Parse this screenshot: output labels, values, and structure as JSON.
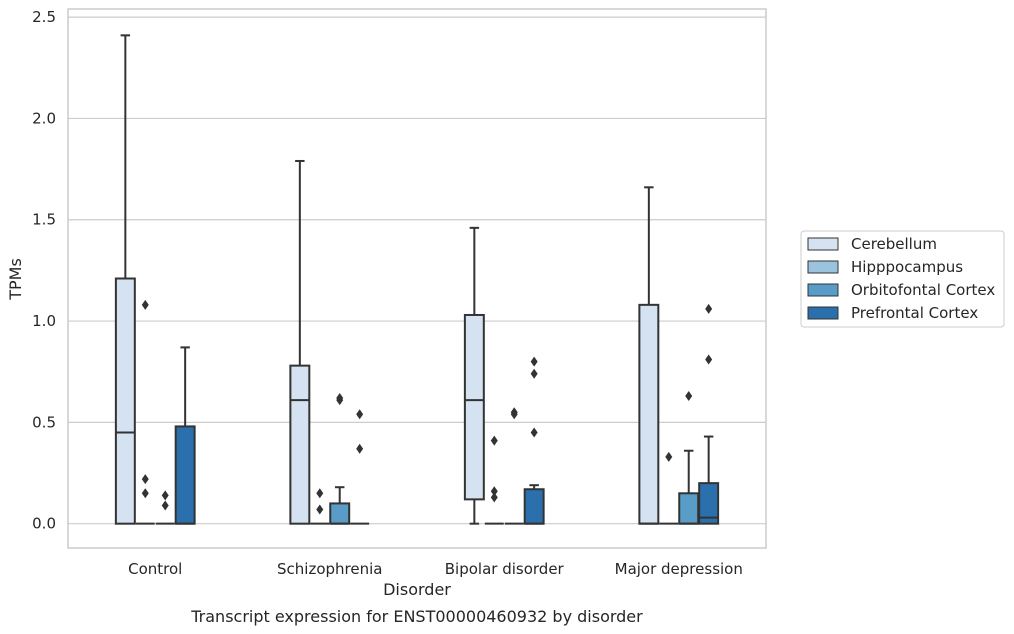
{
  "chart_data": {
    "type": "box",
    "caption": "Transcript expression for ENST00000460932 by disorder",
    "xlabel": "Disorder",
    "ylabel": "TPMs",
    "ylim": [
      -0.12,
      2.54
    ],
    "yticks": [
      "0.0",
      "0.5",
      "1.0",
      "1.5",
      "2.0",
      "2.5"
    ],
    "grid": "horizontal",
    "legend_position": "right",
    "categories": [
      "Control",
      "Schizophrenia",
      "Bipolar disorder",
      "Major depression"
    ],
    "series": [
      {
        "name": "Cerebellum",
        "color": "#d4e2f1",
        "boxes": [
          {
            "q1": 0,
            "median": 0.45,
            "q3": 1.21,
            "whisker_low": 0,
            "whisker_high": 2.41,
            "outliers": []
          },
          {
            "q1": 0,
            "median": 0.61,
            "q3": 0.78,
            "whisker_low": 0,
            "whisker_high": 1.79,
            "outliers": []
          },
          {
            "q1": 0.12,
            "median": 0.61,
            "q3": 1.03,
            "whisker_low": 0,
            "whisker_high": 1.46,
            "outliers": []
          },
          {
            "q1": 0,
            "median": 0,
            "q3": 1.08,
            "whisker_low": 0,
            "whisker_high": 1.66,
            "outliers": []
          }
        ]
      },
      {
        "name": "Hipppocampus",
        "color": "#9cc3dd",
        "boxes": [
          {
            "q1": 0,
            "median": 0,
            "q3": 0,
            "whisker_low": 0,
            "whisker_high": 0,
            "outliers": [
              1.08,
              0.22,
              0.15
            ]
          },
          {
            "q1": 0,
            "median": 0,
            "q3": 0,
            "whisker_low": 0,
            "whisker_high": 0,
            "outliers": [
              0.15,
              0.07
            ]
          },
          {
            "q1": 0,
            "median": 0,
            "q3": 0,
            "whisker_low": 0,
            "whisker_high": 0,
            "outliers": [
              0.41,
              0.16,
              0.13
            ]
          },
          {
            "q1": 0,
            "median": 0,
            "q3": 0,
            "whisker_low": 0,
            "whisker_high": 0,
            "outliers": [
              0.33
            ]
          }
        ]
      },
      {
        "name": "Orbitofontal Cortex",
        "color": "#5a9cc8",
        "boxes": [
          {
            "q1": 0,
            "median": 0,
            "q3": 0,
            "whisker_low": 0,
            "whisker_high": 0,
            "outliers": [
              0.14,
              0.09
            ]
          },
          {
            "q1": 0,
            "median": 0,
            "q3": 0.1,
            "whisker_low": 0,
            "whisker_high": 0.18,
            "outliers": [
              0.62,
              0.61
            ]
          },
          {
            "q1": 0,
            "median": 0,
            "q3": 0,
            "whisker_low": 0,
            "whisker_high": 0,
            "outliers": [
              0.55,
              0.54
            ]
          },
          {
            "q1": 0,
            "median": 0,
            "q3": 0.15,
            "whisker_low": 0,
            "whisker_high": 0.36,
            "outliers": [
              0.63
            ]
          }
        ]
      },
      {
        "name": "Prefrontal Cortex",
        "color": "#2b6fad",
        "boxes": [
          {
            "q1": 0,
            "median": 0,
            "q3": 0.48,
            "whisker_low": 0,
            "whisker_high": 0.87,
            "outliers": []
          },
          {
            "q1": 0,
            "median": 0,
            "q3": 0,
            "whisker_low": 0,
            "whisker_high": 0,
            "outliers": [
              0.54,
              0.37
            ]
          },
          {
            "q1": 0,
            "median": 0,
            "q3": 0.17,
            "whisker_low": 0,
            "whisker_high": 0.19,
            "outliers": [
              0.8,
              0.74,
              0.45
            ]
          },
          {
            "q1": 0,
            "median": 0.03,
            "q3": 0.2,
            "whisker_low": 0,
            "whisker_high": 0.43,
            "outliers": [
              1.06,
              0.81
            ]
          }
        ]
      }
    ]
  }
}
